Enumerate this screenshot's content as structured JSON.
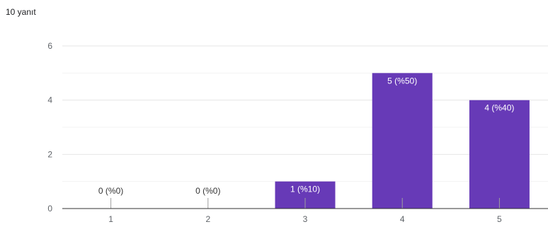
{
  "response_count": "10 yanıt",
  "colors": {
    "bar": "#673ab7",
    "grid": "#e6e6e6",
    "axis": "#333333",
    "label_inside": "#ffffff",
    "label_outside": "#333333"
  },
  "chart_data": {
    "type": "bar",
    "title": "",
    "xlabel": "",
    "ylabel": "",
    "categories": [
      "1",
      "2",
      "3",
      "4",
      "5"
    ],
    "values": [
      0,
      0,
      1,
      5,
      4
    ],
    "data_labels": [
      "0 (%0)",
      "0 (%0)",
      "1 (%10)",
      "5 (%50)",
      "4 (%40)"
    ],
    "ylim": [
      0,
      6
    ],
    "yticks": [
      0,
      2,
      4,
      6
    ],
    "grid": true,
    "legend": "none"
  }
}
